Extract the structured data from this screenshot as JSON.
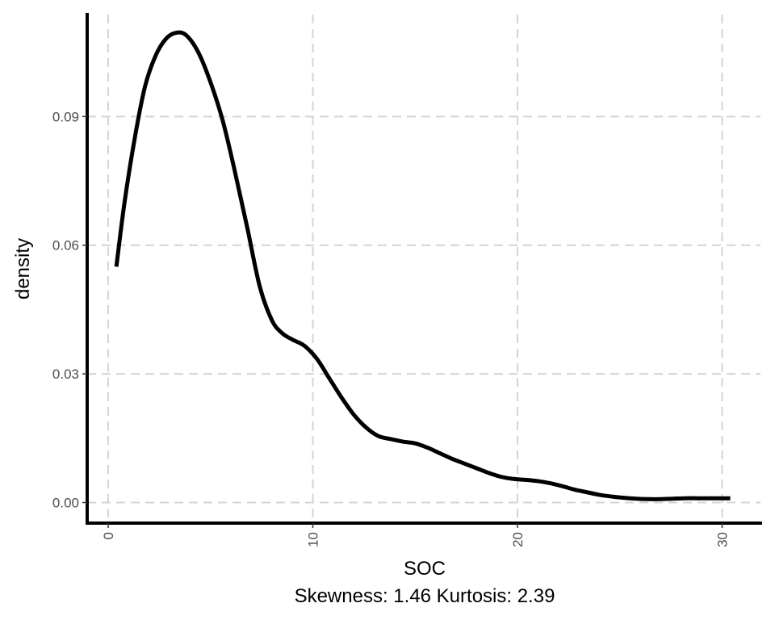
{
  "chart_data": {
    "type": "line",
    "title": "",
    "xlabel": "SOC",
    "subtitle": "Skewness: 1.46 Kurtosis: 2.39",
    "ylabel": "density",
    "xlim": [
      -1,
      32
    ],
    "ylim": [
      -0.0048,
      0.114
    ],
    "x_ticks": [
      {
        "value": 0,
        "label": "0"
      },
      {
        "value": 10,
        "label": "10"
      },
      {
        "value": 20,
        "label": "20"
      },
      {
        "value": 30,
        "label": "30"
      }
    ],
    "y_ticks": [
      {
        "value": 0.0,
        "label": "0.00"
      },
      {
        "value": 0.03,
        "label": "0.03"
      },
      {
        "value": 0.06,
        "label": "0.06"
      },
      {
        "value": 0.09,
        "label": "0.09"
      }
    ],
    "grid": true,
    "legend": "none",
    "series": [
      {
        "color": "#000000",
        "x": [
          0.4,
          0.8,
          1.3,
          1.8,
          2.3,
          2.8,
          3.3,
          3.8,
          4.4,
          5.0,
          5.6,
          6.2,
          6.8,
          7.4,
          8.0,
          8.5,
          9.0,
          9.6,
          10.2,
          10.8,
          11.4,
          12.0,
          12.6,
          13.2,
          13.8,
          14.4,
          15.0,
          15.6,
          16.2,
          16.8,
          17.4,
          18.0,
          18.6,
          19.2,
          19.8,
          20.4,
          21.0,
          21.6,
          22.2,
          22.8,
          23.4,
          24.0,
          24.6,
          25.2,
          25.8,
          26.4,
          27.0,
          27.6,
          28.2,
          28.8,
          29.4,
          30.0,
          30.4
        ],
        "y": [
          0.055,
          0.07,
          0.085,
          0.097,
          0.104,
          0.108,
          0.1095,
          0.109,
          0.105,
          0.098,
          0.089,
          0.077,
          0.064,
          0.0505,
          0.0425,
          0.0395,
          0.038,
          0.0365,
          0.0335,
          0.029,
          0.0245,
          0.0205,
          0.0175,
          0.0155,
          0.0148,
          0.0142,
          0.0138,
          0.0128,
          0.0115,
          0.0102,
          0.0091,
          0.008,
          0.0069,
          0.006,
          0.0055,
          0.0053,
          0.005,
          0.0045,
          0.0038,
          0.003,
          0.0024,
          0.0018,
          0.0014,
          0.0011,
          0.0009,
          0.0008,
          0.0008,
          0.0009,
          0.001,
          0.001,
          0.001,
          0.001,
          0.001
        ]
      }
    ]
  }
}
